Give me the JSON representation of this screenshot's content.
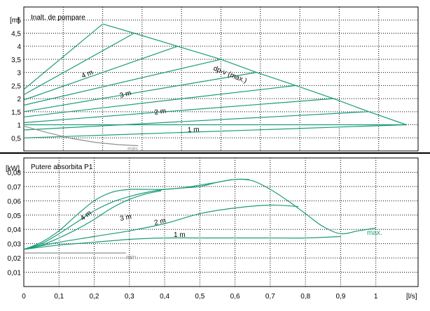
{
  "colors": {
    "curve": "#1a9c78",
    "min_curve": "#909090",
    "frame": "#000000",
    "grid": "#000000"
  },
  "chart_data": [
    {
      "type": "line",
      "title": "Inalt. de pompare",
      "ylabel": "[m]",
      "xlabel": "[l/s]",
      "xlim": [
        0,
        1.0
      ],
      "ylim": [
        0,
        5.5
      ],
      "grid": true,
      "yticks": [
        "0,5",
        "1",
        "1,5",
        "2",
        "2,5",
        "3",
        "3,5",
        "4",
        "4,5",
        "5"
      ],
      "annotations": [
        "dp-v (max.)",
        "4 m",
        "3 m",
        "2 m",
        "1 m",
        "min."
      ],
      "series": [
        {
          "name": "dp-v (max.)",
          "x": [
            0.2,
            0.28,
            0.39,
            0.5,
            0.59,
            0.69,
            0.785,
            0.875,
            0.97
          ],
          "y": [
            4.85,
            4.5,
            4.0,
            3.5,
            3.0,
            2.5,
            2.0,
            1.5,
            1.0
          ]
        },
        {
          "name": "",
          "x": [
            0,
            0.2
          ],
          "y": [
            2.35,
            4.85
          ]
        },
        {
          "name": "",
          "x": [
            0,
            0.28
          ],
          "y": [
            2.15,
            4.5
          ]
        },
        {
          "name": "4 m",
          "x": [
            0,
            0.39
          ],
          "y": [
            1.95,
            4.0
          ]
        },
        {
          "name": "",
          "x": [
            0,
            0.5
          ],
          "y": [
            1.75,
            3.5
          ]
        },
        {
          "name": "3 m",
          "x": [
            0,
            0.59
          ],
          "y": [
            1.5,
            3.0
          ]
        },
        {
          "name": "",
          "x": [
            0,
            0.69
          ],
          "y": [
            1.3,
            2.5
          ]
        },
        {
          "name": "2 m",
          "x": [
            0,
            0.785
          ],
          "y": [
            1.08,
            2.0
          ]
        },
        {
          "name": "",
          "x": [
            0,
            0.875
          ],
          "y": [
            0.8,
            1.5
          ]
        },
        {
          "name": "1 m",
          "x": [
            0,
            0.97
          ],
          "y": [
            0.5,
            1.0
          ]
        },
        {
          "name": "",
          "x": [
            0,
            0.97
          ],
          "y": [
            1.0,
            1.0
          ]
        },
        {
          "name": "min.",
          "x": [
            0,
            0.06,
            0.12,
            0.18,
            0.24,
            0.29
          ],
          "y": [
            0.95,
            0.7,
            0.48,
            0.33,
            0.24,
            0.2
          ]
        }
      ]
    },
    {
      "type": "line",
      "title": "Putere absorbita P1",
      "ylabel": "[kW]",
      "xlabel": "[l/s]",
      "xlim": [
        0,
        1.12
      ],
      "ylim": [
        0,
        0.09
      ],
      "grid": true,
      "xticks": [
        "0",
        "0,1",
        "0,2",
        "0,3",
        "0,4",
        "0,5",
        "0,6",
        "0,7",
        "0,8",
        "0,9",
        "1"
      ],
      "yticks": [
        "0,01",
        "0,02",
        "0,03",
        "0,04",
        "0,05",
        "0,06",
        "0,07",
        "0,08"
      ],
      "annotations": [
        "4 m",
        "3 m",
        "2 m",
        "1 m",
        "max.",
        "min."
      ],
      "series": [
        {
          "name": "max.",
          "x": [
            0,
            0.05,
            0.1,
            0.15,
            0.2,
            0.25,
            0.3,
            0.35,
            0.4,
            0.45,
            0.5,
            0.55,
            0.6,
            0.65,
            0.7,
            0.75,
            0.8,
            0.85,
            0.9,
            0.95,
            1.0
          ],
          "y": [
            0.026,
            0.031,
            0.039,
            0.05,
            0.06,
            0.066,
            0.068,
            0.068,
            0.068,
            0.069,
            0.07,
            0.073,
            0.075,
            0.074,
            0.068,
            0.06,
            0.051,
            0.042,
            0.037,
            0.039,
            0.041
          ]
        },
        {
          "name": "4 m",
          "x": [
            0,
            0.05,
            0.1,
            0.15,
            0.2,
            0.25,
            0.3,
            0.35,
            0.4,
            0.45,
            0.5,
            0.55,
            0.6,
            0.64
          ],
          "y": [
            0.026,
            0.03,
            0.037,
            0.045,
            0.053,
            0.059,
            0.063,
            0.066,
            0.068,
            0.069,
            0.071,
            0.073,
            0.075,
            0.075
          ]
        },
        {
          "name": "3 m",
          "x": [
            0,
            0.05,
            0.1,
            0.15,
            0.2,
            0.25,
            0.3,
            0.35,
            0.39
          ],
          "y": [
            0.026,
            0.029,
            0.034,
            0.04,
            0.047,
            0.055,
            0.061,
            0.065,
            0.067
          ]
        },
        {
          "name": "2 m",
          "x": [
            0,
            0.1,
            0.2,
            0.3,
            0.4,
            0.5,
            0.6,
            0.7,
            0.78
          ],
          "y": [
            0.026,
            0.031,
            0.035,
            0.039,
            0.044,
            0.051,
            0.055,
            0.057,
            0.056
          ]
        },
        {
          "name": "1 m",
          "x": [
            0,
            0.1,
            0.2,
            0.3,
            0.4,
            0.5,
            0.6,
            0.7,
            0.8,
            0.9
          ],
          "y": [
            0.026,
            0.029,
            0.031,
            0.033,
            0.034,
            0.034,
            0.034,
            0.034,
            0.034,
            0.035
          ]
        },
        {
          "name": "min.",
          "x": [
            0,
            0.05,
            0.1,
            0.15,
            0.2,
            0.25,
            0.29
          ],
          "y": [
            0.0235,
            0.0235,
            0.0235,
            0.0235,
            0.0235,
            0.0235,
            0.0235
          ]
        }
      ]
    }
  ]
}
